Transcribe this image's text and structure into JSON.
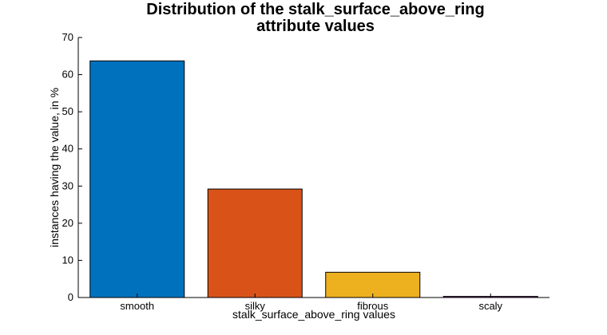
{
  "chart_data": {
    "type": "bar",
    "title_lines": [
      "Distribution of the stalk_surface_above_ring",
      "attribute values"
    ],
    "xlabel": "stalk_surface_above_ring values",
    "ylabel": "instances having the value, in %",
    "categories": [
      "smooth",
      "silky",
      "fibrous",
      "scaly"
    ],
    "values": [
      63.7,
      29.2,
      6.8,
      0.3
    ],
    "colors": [
      "#0072BD",
      "#D95319",
      "#EDB120",
      "#7E2F8E"
    ],
    "ylim": [
      0,
      70
    ],
    "yticks": [
      0,
      10,
      20,
      30,
      40,
      50,
      60,
      70
    ],
    "grid": false
  }
}
